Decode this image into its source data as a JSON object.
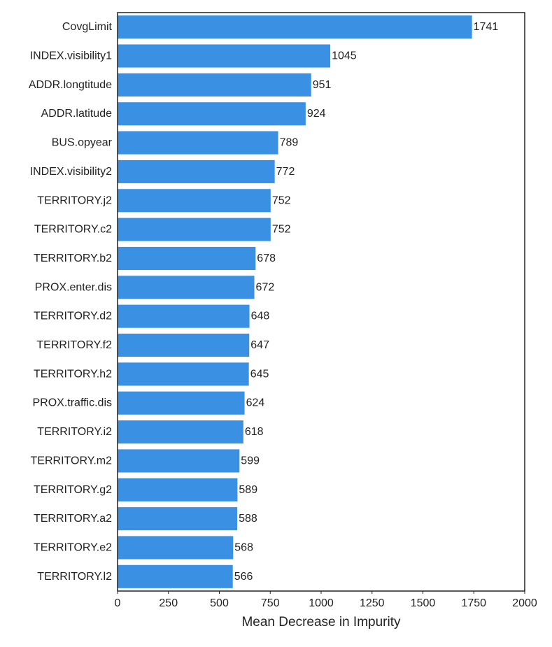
{
  "chart_data": {
    "type": "bar",
    "orientation": "horizontal",
    "title": "",
    "xlabel": "Mean Decrease in Impurity",
    "ylabel": "",
    "xlim": [
      0,
      2000
    ],
    "xticks": [
      0,
      250,
      500,
      750,
      1000,
      1250,
      1500,
      1750,
      2000
    ],
    "grid": false,
    "bar_color": "#3a91e4",
    "categories": [
      "CovgLimit",
      "INDEX.visibility1",
      "ADDR.longtitude",
      "ADDR.latitude",
      "BUS.opyear",
      "INDEX.visibility2",
      "TERRITORY.j2",
      "TERRITORY.c2",
      "TERRITORY.b2",
      "PROX.enter.dis",
      "TERRITORY.d2",
      "TERRITORY.f2",
      "TERRITORY.h2",
      "PROX.traffic.dis",
      "TERRITORY.i2",
      "TERRITORY.m2",
      "TERRITORY.g2",
      "TERRITORY.a2",
      "TERRITORY.e2",
      "TERRITORY.l2"
    ],
    "values": [
      1741,
      1045,
      951,
      924,
      789,
      772,
      752,
      752,
      678,
      672,
      648,
      647,
      645,
      624,
      618,
      599,
      589,
      588,
      568,
      566
    ]
  }
}
